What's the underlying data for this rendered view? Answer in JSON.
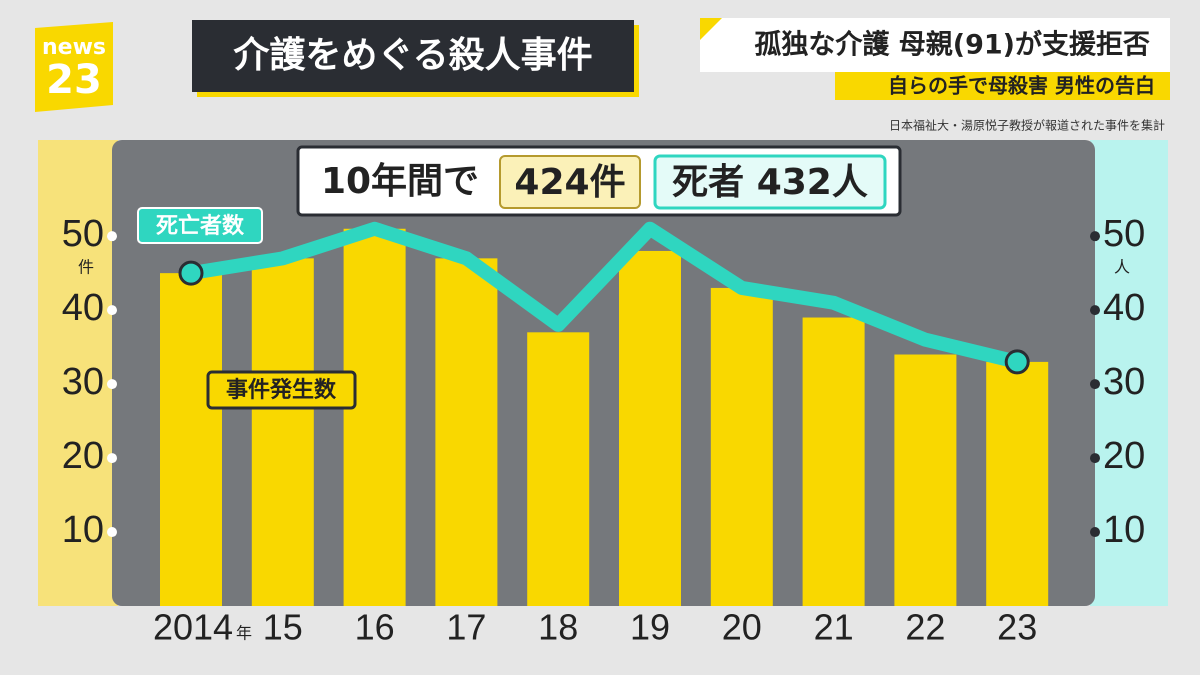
{
  "logo": {
    "top": "news",
    "bottom": "23"
  },
  "title": "介護をめぐる殺人事件",
  "headline": "孤独な介護 母親(91)が支援拒否",
  "subheadline": "自らの手で母殺害 男性の告白",
  "source": "日本福祉大・湯原悦子教授が報道された事件を集計",
  "chart_data": {
    "type": "bar",
    "banner": {
      "period": "10年間で",
      "cases": "424件",
      "deaths": "死者 432人"
    },
    "categories": [
      "2014",
      "15",
      "16",
      "17",
      "18",
      "19",
      "20",
      "21",
      "22",
      "23"
    ],
    "x_unit": "年",
    "y_unit": "件",
    "y2_unit": "人",
    "series": [
      {
        "name": "事件発生数",
        "type": "bar",
        "color": "#f9d800",
        "values": [
          45,
          47,
          51,
          47,
          37,
          48,
          43,
          39,
          34,
          33
        ]
      },
      {
        "name": "死亡者数",
        "type": "line",
        "axis": "y2",
        "color": "#2fd6c0",
        "values": [
          45,
          47,
          51,
          47,
          38,
          51,
          43,
          41,
          36,
          33
        ]
      }
    ],
    "ylim": [
      0,
      63
    ],
    "yticks": [
      10,
      20,
      30,
      40,
      50
    ],
    "y2lim": [
      0,
      63
    ],
    "y2ticks": [
      10,
      20,
      30,
      40,
      50
    ]
  }
}
